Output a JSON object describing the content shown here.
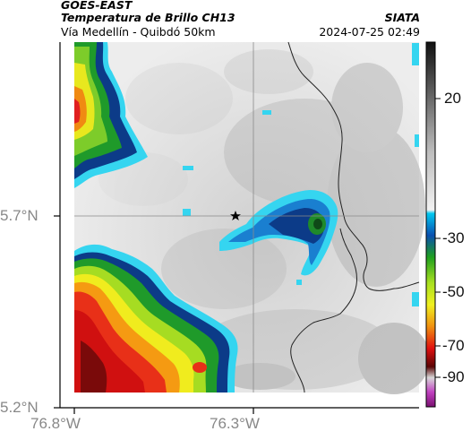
{
  "header": {
    "satellite": "GOES-EAST",
    "product": "Temperatura de Brillo CH13",
    "region": "Vía Medellín - Quibdó 50km",
    "agency": "SIATA",
    "datetime": "2024-07-25 02:49"
  },
  "axes": {
    "lat_ticks": [
      "5.7°N",
      "5.2°N"
    ],
    "lon_ticks": [
      "76.8°W",
      "76.3°W"
    ]
  },
  "colorbar": {
    "ticks": [
      "20",
      "-30",
      "-50",
      "-70",
      "-90"
    ]
  },
  "colors": {
    "warm_surface": "#ececec",
    "cold_blue": "#1a7fd0",
    "cyan_edge": "#31d4ee",
    "green": "#2fb82f",
    "yellow": "#e8ee20",
    "red": "#e01010",
    "coast_line": "#222222"
  }
}
